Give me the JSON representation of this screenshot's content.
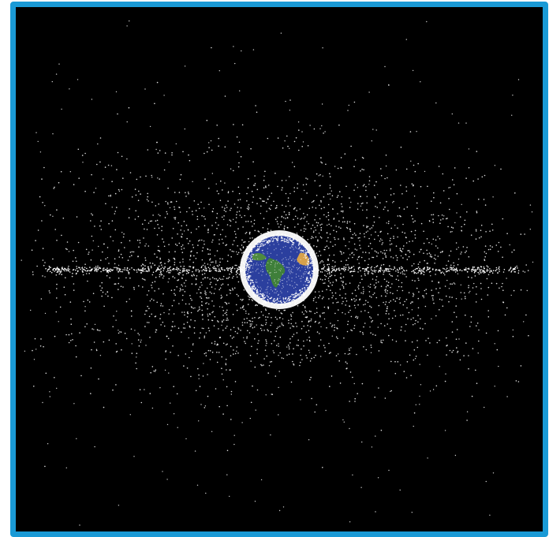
{
  "image": {
    "subject": "earth-with-orbital-debris-cloud",
    "frame_color": "#1a9ad6",
    "background_color": "#000000",
    "debris_color": "#ffffff",
    "ocean_color": "#2b3f9e",
    "land_color": "#3f7f3a",
    "desert_color": "#d7a14b"
  }
}
